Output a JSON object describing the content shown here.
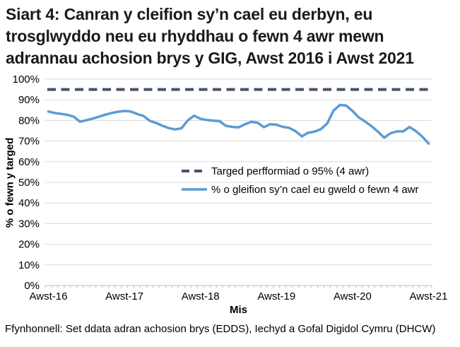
{
  "title_lines": [
    "Siart 4: Canran y cleifion sy’n cael eu derbyn, eu",
    "trosglwyddo neu eu rhyddhau o fewn 4 awr mewn",
    "adrannau achosion brys y GIG, Awst 2016 i Awst 2021"
  ],
  "chart_data": {
    "type": "line",
    "title": "Siart 4: Canran y cleifion sy’n cael eu derbyn, eu trosglwyddo neu eu rhyddhau o fewn 4 awr mewn adrannau achosion brys y GIG, Awst 2016 i Awst 2021",
    "xlabel": "Mis",
    "ylabel": "% o fewn y targed",
    "ylim": [
      0,
      100
    ],
    "y_tick_step": 10,
    "y_tick_suffix": "%",
    "x_tick_labels": [
      "Awst-16",
      "Awst-17",
      "Awst-18",
      "Awst-19",
      "Awst-20",
      "Awst-21"
    ],
    "x_interval": "monthly",
    "x_ticks_per_label": 12,
    "grid": true,
    "legend_position": "inside-right",
    "colors": {
      "target": "#44546A",
      "series": "#5B9BD5",
      "gridline": "#D9D9D9",
      "axis": "#BFBFBF",
      "text": "#000000"
    },
    "series": [
      {
        "name": "Targed perfformiad o 95% (4 awr)",
        "style": "dashed",
        "value": 95
      },
      {
        "name": "% o gleifion sy’n cael eu gweld o fewn 4 awr",
        "style": "solid",
        "values": [
          84.3,
          83.6,
          83.2,
          82.7,
          81.8,
          79.4,
          80.1,
          80.9,
          81.8,
          82.8,
          83.6,
          84.2,
          84.6,
          84.3,
          83.1,
          82.2,
          79.8,
          78.8,
          77.4,
          76.3,
          75.6,
          76.2,
          80.0,
          82.3,
          80.8,
          80.2,
          79.9,
          79.7,
          77.4,
          76.9,
          76.6,
          78.1,
          79.3,
          78.9,
          76.7,
          78.2,
          77.9,
          76.9,
          76.4,
          74.8,
          72.3,
          74.0,
          74.6,
          75.8,
          78.5,
          84.8,
          87.5,
          87.2,
          84.6,
          81.4,
          79.5,
          77.2,
          74.6,
          71.6,
          73.8,
          74.7,
          74.7,
          76.8,
          74.8,
          72.2,
          68.8
        ]
      }
    ]
  },
  "footer": "Ffynhonnell: Set ddata adran achosion brys (EDDS), Iechyd a Gofal Digidol Cymru (DHCW)"
}
